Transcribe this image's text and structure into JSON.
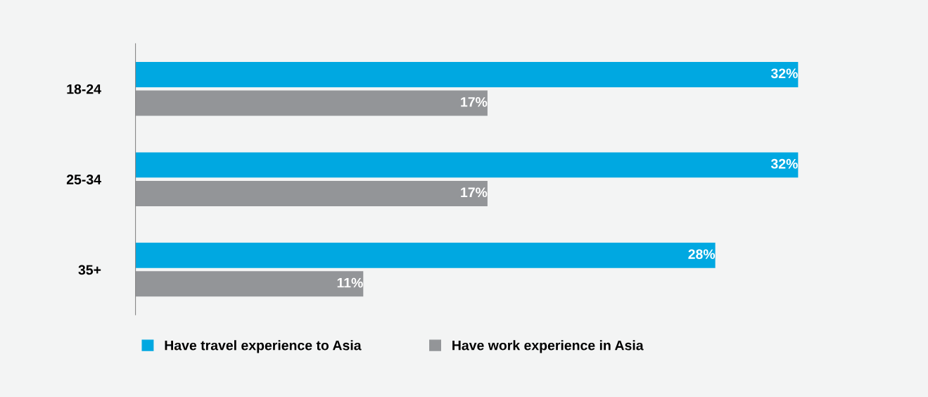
{
  "chart_data": {
    "type": "bar",
    "orientation": "horizontal",
    "categories": [
      "18-24",
      "25-34",
      "35+"
    ],
    "series": [
      {
        "name": "Have travel experience to Asia",
        "color": "#00a8e1",
        "values": [
          32,
          32,
          28
        ],
        "value_labels": [
          "32%",
          "32%",
          "28%"
        ]
      },
      {
        "name": "Have work experience in Asia",
        "color": "#939598",
        "values": [
          17,
          17,
          11
        ],
        "value_labels": [
          "17%",
          "17%",
          "11%"
        ]
      }
    ],
    "legend": "bottom",
    "grid": false,
    "tick_labels": "y"
  }
}
